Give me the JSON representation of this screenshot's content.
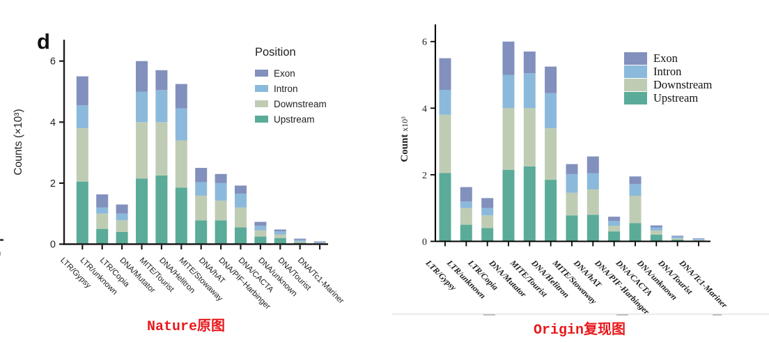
{
  "panel_label": "d",
  "captions": {
    "left": "Nature原图",
    "right": "Origin复现图"
  },
  "colors": {
    "upstream": "#5aab98",
    "downstream": "#bfccb4",
    "intron": "#8bb9db",
    "exon": "#8290bd",
    "caption": "#e8191c",
    "axis_left": "#1c1c1c",
    "axis_right": "#000000"
  },
  "artifacts": {
    "paren": ")"
  },
  "chart_data": [
    {
      "type": "bar",
      "stacked": true,
      "title": "Nature original panel d",
      "xlabel": "",
      "ylabel": "Counts (×10³)",
      "ylim": [
        0,
        6.5
      ],
      "yticks": [
        0,
        2,
        4,
        6
      ],
      "grid": false,
      "legend_title": "Position",
      "legend_position": "upper right",
      "legend": [
        "Exon",
        "Intron",
        "Downstream",
        "Upstream"
      ],
      "categories": [
        "LTR/Gypsy",
        "LTR/unknown",
        "LTR/Copia",
        "DNA/Mutator",
        "MITE/Tourist",
        "DNA/Helitron",
        "MITE/Stowaway",
        "DNA/hAT",
        "DNA/PIF-Harbinger",
        "DNA/CACTA",
        "DNA/unknown",
        "DNA/Tourist",
        "DNA/Tc1-Mariner"
      ],
      "series": [
        {
          "name": "Upstream",
          "color": "#5aab98",
          "values": [
            2.05,
            0.5,
            0.4,
            2.15,
            2.25,
            1.85,
            0.78,
            0.78,
            0.55,
            0.25,
            0.2,
            0.05,
            0.02
          ]
        },
        {
          "name": "Downstream",
          "color": "#bfccb4",
          "values": [
            1.75,
            0.5,
            0.38,
            1.85,
            1.75,
            1.55,
            0.81,
            0.65,
            0.65,
            0.2,
            0.12,
            0.04,
            0.02
          ]
        },
        {
          "name": "Intron",
          "color": "#8bb9db",
          "values": [
            0.75,
            0.2,
            0.22,
            1.0,
            1.05,
            1.05,
            0.44,
            0.57,
            0.45,
            0.15,
            0.1,
            0.05,
            0.03
          ]
        },
        {
          "name": "Exon",
          "color": "#8290bd",
          "values": [
            0.95,
            0.43,
            0.3,
            1.0,
            0.65,
            0.8,
            0.47,
            0.3,
            0.27,
            0.13,
            0.06,
            0.04,
            0.02
          ]
        }
      ],
      "totals": [
        5.5,
        1.63,
        1.3,
        6.0,
        5.7,
        5.25,
        2.5,
        2.3,
        1.92,
        0.73,
        0.48,
        0.18,
        0.09
      ]
    },
    {
      "type": "bar",
      "stacked": true,
      "title": "Origin reproduction",
      "xlabel": "",
      "ylabel": "Count x10³",
      "ylim": [
        0,
        6.5
      ],
      "yticks": [
        0,
        2,
        4,
        6
      ],
      "grid": false,
      "legend_title": "",
      "legend_position": "upper right",
      "legend": [
        "Exon",
        "Intron",
        "Downstream",
        "Upstream"
      ],
      "categories": [
        "LTR/Gypsy",
        "LTR/unknown",
        "LTR/Copia",
        "DNA/Mutator",
        "MITE/Tourist",
        "DNA/Helitron",
        "MITE/Stowaway",
        "DNA/hAT",
        "DNA/PIF-Harbinger",
        "DNA/CACTA",
        "DNA/unknown",
        "DNA/Tourist",
        "DNA/Tc1-Mariner"
      ],
      "series": [
        {
          "name": "Upstream",
          "color": "#5aab98",
          "values": [
            2.05,
            0.5,
            0.4,
            2.15,
            2.25,
            1.85,
            0.78,
            0.8,
            0.3,
            0.55,
            0.2,
            0.05,
            0.02
          ]
        },
        {
          "name": "Downstream",
          "color": "#bfccb4",
          "values": [
            1.75,
            0.5,
            0.38,
            1.85,
            1.75,
            1.55,
            0.68,
            0.76,
            0.17,
            0.82,
            0.12,
            0.04,
            0.02
          ]
        },
        {
          "name": "Intron",
          "color": "#8bb9db",
          "values": [
            0.75,
            0.2,
            0.22,
            1.0,
            1.05,
            1.05,
            0.56,
            0.49,
            0.14,
            0.35,
            0.1,
            0.05,
            0.03
          ]
        },
        {
          "name": "Exon",
          "color": "#8290bd",
          "values": [
            0.95,
            0.43,
            0.3,
            1.0,
            0.65,
            0.8,
            0.3,
            0.5,
            0.13,
            0.23,
            0.06,
            0.03,
            0.02
          ]
        }
      ],
      "totals": [
        5.5,
        1.63,
        1.3,
        6.0,
        5.7,
        5.25,
        2.32,
        2.55,
        0.74,
        1.95,
        0.48,
        0.17,
        0.09
      ]
    }
  ]
}
